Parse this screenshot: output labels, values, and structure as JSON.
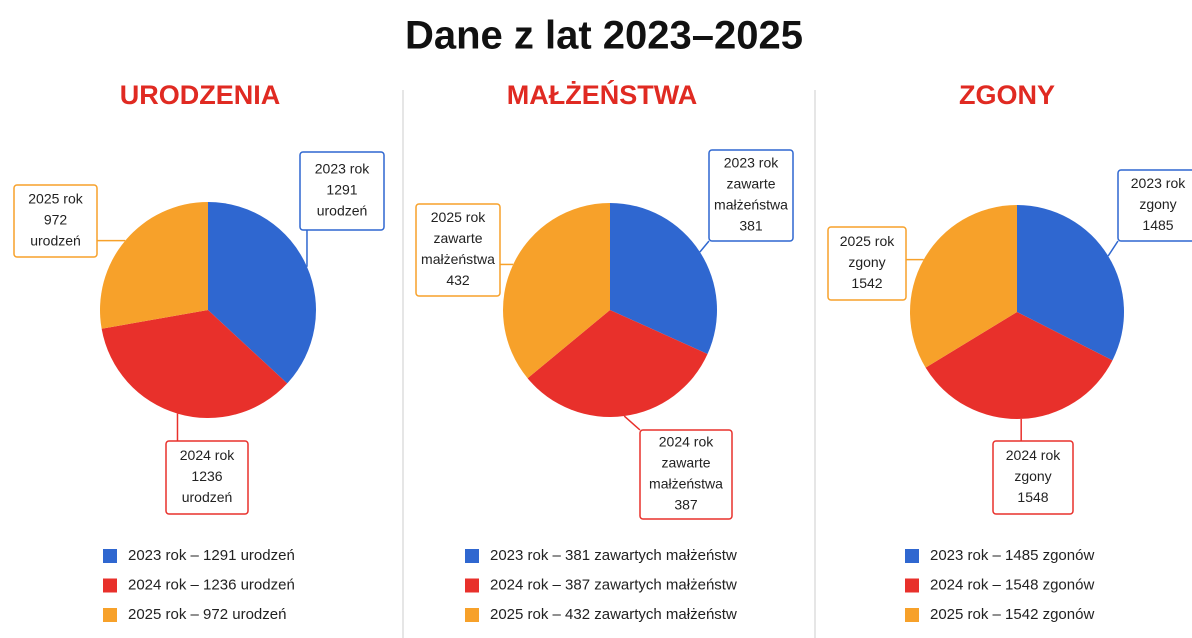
{
  "title": "Dane z lat 2023–2025",
  "chart_data": [
    {
      "type": "pie",
      "title": "URODZENIA",
      "categories": [
        "2023 rok – 1291 urodzeń",
        "2024 rok – 1236 urodzeń",
        "2025 rok – 972 urodzeń"
      ],
      "values": [
        1291,
        1236,
        972
      ],
      "value_labels": [
        [
          "2023 rok",
          "1291",
          "urodzeń"
        ],
        [
          "2024 rok",
          "1236",
          "urodzeń"
        ],
        [
          "2025 rok",
          "972",
          "urodzeń"
        ]
      ],
      "colors": [
        "#2f67d0",
        "#e8302b",
        "#f7a12a"
      ]
    },
    {
      "type": "pie",
      "title": "MAŁŻEŃSTWA",
      "categories": [
        "2023 rok – 381 zawartych małżeństw",
        "2024 rok – 387 zawartych małżeństw",
        "2025 rok – 432 zawartych małżeństw"
      ],
      "values": [
        381,
        387,
        432
      ],
      "value_labels": [
        [
          "2023 rok",
          "zawarte",
          "małżeństwa",
          "381"
        ],
        [
          "2024 rok",
          "zawarte",
          "małżeństwa",
          "387"
        ],
        [
          "2025 rok",
          "zawarte",
          "małżeństwa",
          "432"
        ]
      ],
      "colors": [
        "#2f67d0",
        "#e8302b",
        "#f7a12a"
      ]
    },
    {
      "type": "pie",
      "title": "ZGONY",
      "categories": [
        "2023 rok – 1485 zgonów",
        "2024 rok – 1548 zgonów",
        "2025 rok – 1542 zgonów"
      ],
      "values": [
        1485,
        1548,
        1542
      ],
      "value_labels": [
        [
          "2023 rok",
          "zgony",
          "1485"
        ],
        [
          "2024 rok",
          "zgony",
          "1548"
        ],
        [
          "2025 rok",
          "zgony",
          "1542"
        ]
      ],
      "colors": [
        "#2f67d0",
        "#e8302b",
        "#f7a12a"
      ]
    }
  ]
}
